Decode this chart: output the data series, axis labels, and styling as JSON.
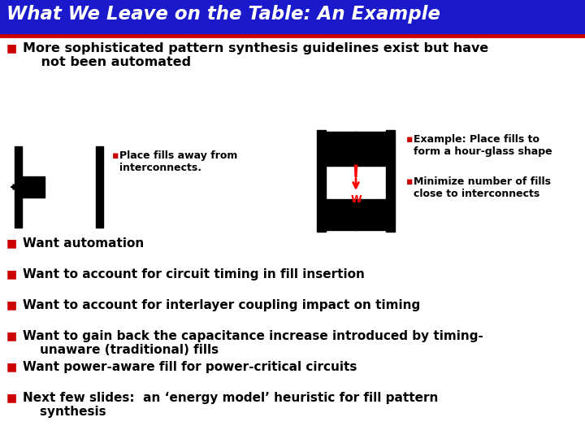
{
  "title": "What We Leave on the Table: An Example",
  "title_color": "#1a1aaa",
  "title_bg": "#dce6f1",
  "title_underline_color": "#CC0000",
  "bg_color": "#FFFFFF",
  "bullet_color": "#CC0000",
  "text_color": "#000000",
  "top_bullet": "More sophisticated pattern synthesis guidelines exist but have\n    not been automated",
  "diagram_label1_bullet": "▪Place fills away from\n  interconnects.",
  "diagram_label2a": "▪Example: Place fills to\n  form a hour-glass shape",
  "diagram_label2b": "▪Minimize number of fills\n  close to interconnects",
  "bullets": [
    "Want automation",
    "Want to account for circuit timing in fill insertion",
    "Want to account for interlayer coupling impact on timing",
    "Want to gain back the capacitance increase introduced by timing-\n    unaware (traditional) fills",
    "Want power-aware fill for power-critical circuits",
    "Next few slides:  an ‘energy model’ heuristic for fill pattern\n    synthesis"
  ],
  "figsize": [
    7.2,
    5.4
  ],
  "dpi": 100
}
